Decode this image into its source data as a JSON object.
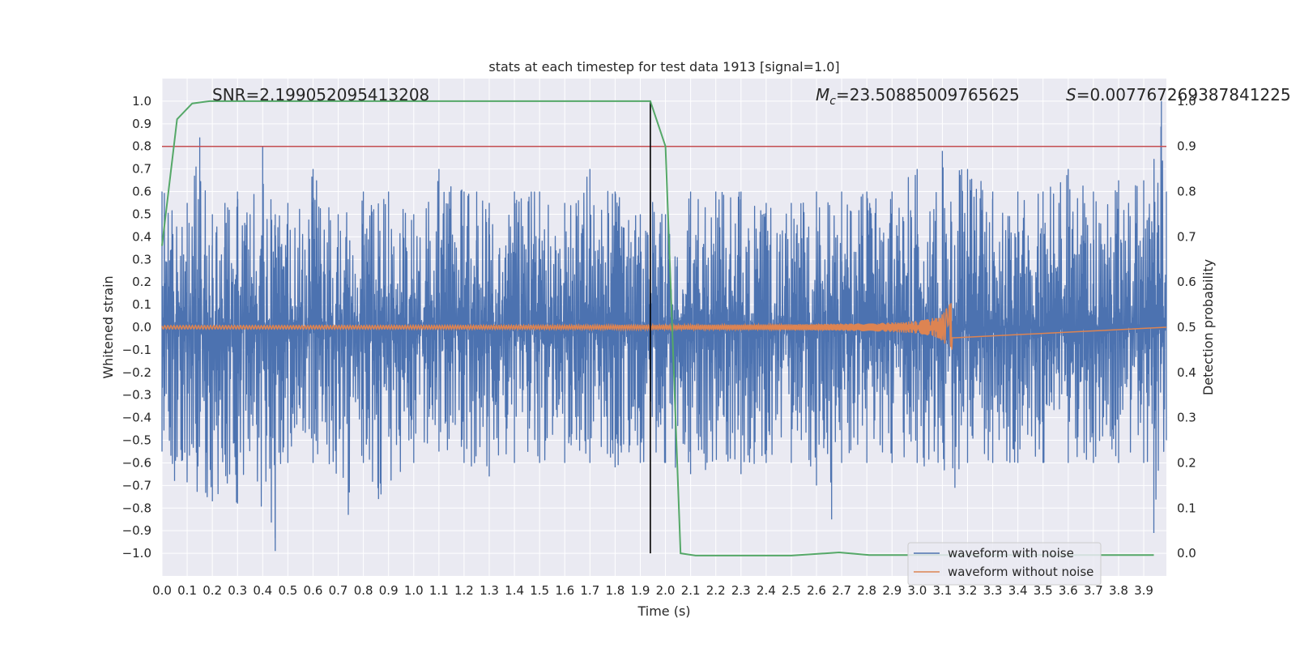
{
  "chart_data": {
    "type": "line",
    "title": "stats at each timestep for test data 1913 [signal=1.0]",
    "xlabel": "Time (s)",
    "ylabel": "Whitened strain",
    "ylabel_right": "Detection probability",
    "xlim": [
      0.0,
      3.99
    ],
    "ylim": [
      -1.1,
      1.1
    ],
    "ylim_right": [
      -0.05,
      1.05
    ],
    "x_ticks": [
      "0.0",
      "0.1",
      "0.2",
      "0.3",
      "0.4",
      "0.5",
      "0.6",
      "0.7",
      "0.8",
      "0.9",
      "1.0",
      "1.1",
      "1.2",
      "1.3",
      "1.4",
      "1.5",
      "1.6",
      "1.7",
      "1.8",
      "1.9",
      "2.0",
      "2.1",
      "2.2",
      "2.3",
      "2.4",
      "2.5",
      "2.6",
      "2.7",
      "2.8",
      "2.9",
      "3.0",
      "3.1",
      "3.2",
      "3.3",
      "3.4",
      "3.5",
      "3.6",
      "3.7",
      "3.8",
      "3.9"
    ],
    "y_ticks": [
      "1.0",
      "0.9",
      "0.8",
      "0.7",
      "0.6",
      "0.5",
      "0.4",
      "0.3",
      "0.2",
      "0.1",
      "0.0",
      "−0.1",
      "−0.2",
      "−0.3",
      "−0.4",
      "−0.5",
      "−0.6",
      "−0.7",
      "−0.8",
      "−0.9",
      "−1.0"
    ],
    "y_ticks_right": [
      "1.0",
      "0.9",
      "0.8",
      "0.7",
      "0.6",
      "0.5",
      "0.4",
      "0.3",
      "0.2",
      "0.1",
      "0.0"
    ],
    "grid": true,
    "legend_position": "lower-right",
    "annotations": {
      "snr": "SNR=2.199052095413208",
      "mc_symbol": "M",
      "mc_sub": "c",
      "mc_value": "=23.50885009765625",
      "s_symbol": "S",
      "s_value": "=0.007767269387841225"
    },
    "threshold_right": 0.9,
    "detection_time": 1.94,
    "series": [
      {
        "name": "waveform with noise",
        "color": "#4c72b0",
        "envelope_pos": [
          [
            0.0,
            0.6
          ],
          [
            0.1,
            0.55
          ],
          [
            0.15,
            0.84
          ],
          [
            0.2,
            0.5
          ],
          [
            0.25,
            0.55
          ],
          [
            0.3,
            0.6
          ],
          [
            0.35,
            0.5
          ],
          [
            0.4,
            0.8
          ],
          [
            0.45,
            0.5
          ],
          [
            0.5,
            0.55
          ],
          [
            0.6,
            0.7
          ],
          [
            0.7,
            0.5
          ],
          [
            0.8,
            0.6
          ],
          [
            0.9,
            0.6
          ],
          [
            1.0,
            0.5
          ],
          [
            1.1,
            0.7
          ],
          [
            1.2,
            0.6
          ],
          [
            1.25,
            0.6
          ],
          [
            1.3,
            0.55
          ],
          [
            1.4,
            0.6
          ],
          [
            1.5,
            0.6
          ],
          [
            1.6,
            0.55
          ],
          [
            1.7,
            0.7
          ],
          [
            1.8,
            0.6
          ],
          [
            1.9,
            0.5
          ],
          [
            1.94,
            0.6
          ],
          [
            2.0,
            0.5
          ],
          [
            2.1,
            0.6
          ],
          [
            2.2,
            0.6
          ],
          [
            2.3,
            0.6
          ],
          [
            2.4,
            0.55
          ],
          [
            2.5,
            0.55
          ],
          [
            2.6,
            0.6
          ],
          [
            2.7,
            0.6
          ],
          [
            2.8,
            0.6
          ],
          [
            2.9,
            0.6
          ],
          [
            3.0,
            0.7
          ],
          [
            3.1,
            0.78
          ],
          [
            3.2,
            0.7
          ],
          [
            3.3,
            0.6
          ],
          [
            3.4,
            0.6
          ],
          [
            3.5,
            0.6
          ],
          [
            3.6,
            0.7
          ],
          [
            3.7,
            0.6
          ],
          [
            3.8,
            0.65
          ],
          [
            3.9,
            0.65
          ],
          [
            3.97,
            1.0
          ],
          [
            3.99,
            0.6
          ]
        ],
        "envelope_neg": [
          [
            0.0,
            -0.55
          ],
          [
            0.05,
            -0.68
          ],
          [
            0.2,
            -0.77
          ],
          [
            0.3,
            -0.78
          ],
          [
            0.45,
            -0.99
          ],
          [
            0.5,
            -0.6
          ],
          [
            0.6,
            -0.6
          ],
          [
            0.74,
            -0.83
          ],
          [
            0.8,
            -0.6
          ],
          [
            0.86,
            -0.76
          ],
          [
            1.0,
            -0.6
          ],
          [
            1.1,
            -0.55
          ],
          [
            1.2,
            -0.6
          ],
          [
            1.3,
            -0.66
          ],
          [
            1.4,
            -0.6
          ],
          [
            1.5,
            -0.6
          ],
          [
            1.6,
            -0.6
          ],
          [
            1.7,
            -0.6
          ],
          [
            1.8,
            -0.62
          ],
          [
            1.9,
            -0.6
          ],
          [
            2.0,
            -0.6
          ],
          [
            2.1,
            -0.65
          ],
          [
            2.3,
            -0.65
          ],
          [
            2.4,
            -0.6
          ],
          [
            2.5,
            -0.6
          ],
          [
            2.6,
            -0.7
          ],
          [
            2.66,
            -0.85
          ],
          [
            2.7,
            -0.6
          ],
          [
            2.8,
            -0.6
          ],
          [
            2.9,
            -0.6
          ],
          [
            3.0,
            -0.6
          ],
          [
            3.15,
            -0.71
          ],
          [
            3.2,
            -0.6
          ],
          [
            3.3,
            -0.6
          ],
          [
            3.4,
            -0.6
          ],
          [
            3.5,
            -0.6
          ],
          [
            3.6,
            -0.6
          ],
          [
            3.7,
            -0.6
          ],
          [
            3.8,
            -0.6
          ],
          [
            3.9,
            -0.6
          ],
          [
            3.94,
            -0.91
          ],
          [
            3.99,
            -0.5
          ]
        ]
      },
      {
        "name": "waveform without noise",
        "color": "#dd8452",
        "chirp": {
          "t_merge": 3.14,
          "peak_amplitude": 0.11,
          "base_amplitude": 0.005
        }
      },
      {
        "name": "detection probability",
        "color": "#55a868",
        "axis": "right",
        "x": [
          0.0,
          0.06,
          0.12,
          0.19,
          0.25,
          0.31,
          0.37,
          0.5,
          1.0,
          1.5,
          1.88,
          1.94,
          2.0,
          2.06,
          2.12,
          2.18,
          2.5,
          2.69,
          2.81,
          3.0,
          3.5,
          3.94
        ],
        "y": [
          0.68,
          0.96,
          0.995,
          1.0,
          1.0,
          1.0,
          1.0,
          1.0,
          1.0,
          1.0,
          1.0,
          1.0,
          0.9,
          0.0,
          -0.005,
          -0.005,
          -0.005,
          0.002,
          -0.004,
          -0.004,
          -0.004,
          -0.004
        ]
      }
    ],
    "colors": {
      "background": "#eaeaf2",
      "grid": "#ffffff",
      "threshold": "#c44e52",
      "detection_line": "#000000",
      "text": "#262626"
    }
  }
}
